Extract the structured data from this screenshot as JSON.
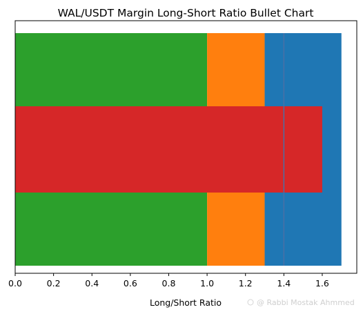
{
  "chart_data": {
    "type": "bar",
    "orientation": "horizontal",
    "title": "WAL/USDT Margin Long-Short Ratio Bullet Chart",
    "xlabel": "Long/Short Ratio",
    "ylabel": "",
    "xlim": [
      0,
      1.78
    ],
    "xticks": [
      "0.0",
      "0.2",
      "0.4",
      "0.6",
      "0.8",
      "1.0",
      "1.2",
      "1.4",
      "1.6"
    ],
    "grid": false,
    "legend": "none",
    "qualitative_ranges": [
      {
        "color": "#2ca02c",
        "from": 0,
        "to": 1.0
      },
      {
        "color": "#ff7f0e",
        "from": 1.0,
        "to": 1.3
      },
      {
        "color": "#1f77b4",
        "from": 1.3,
        "to": 1.7
      }
    ],
    "measure": {
      "color": "#d62728",
      "value": 1.6
    },
    "target": {
      "color": "#4a6fa5",
      "value": 1.4
    }
  },
  "watermark": "@ Rabbi Mostak Ahmmed"
}
